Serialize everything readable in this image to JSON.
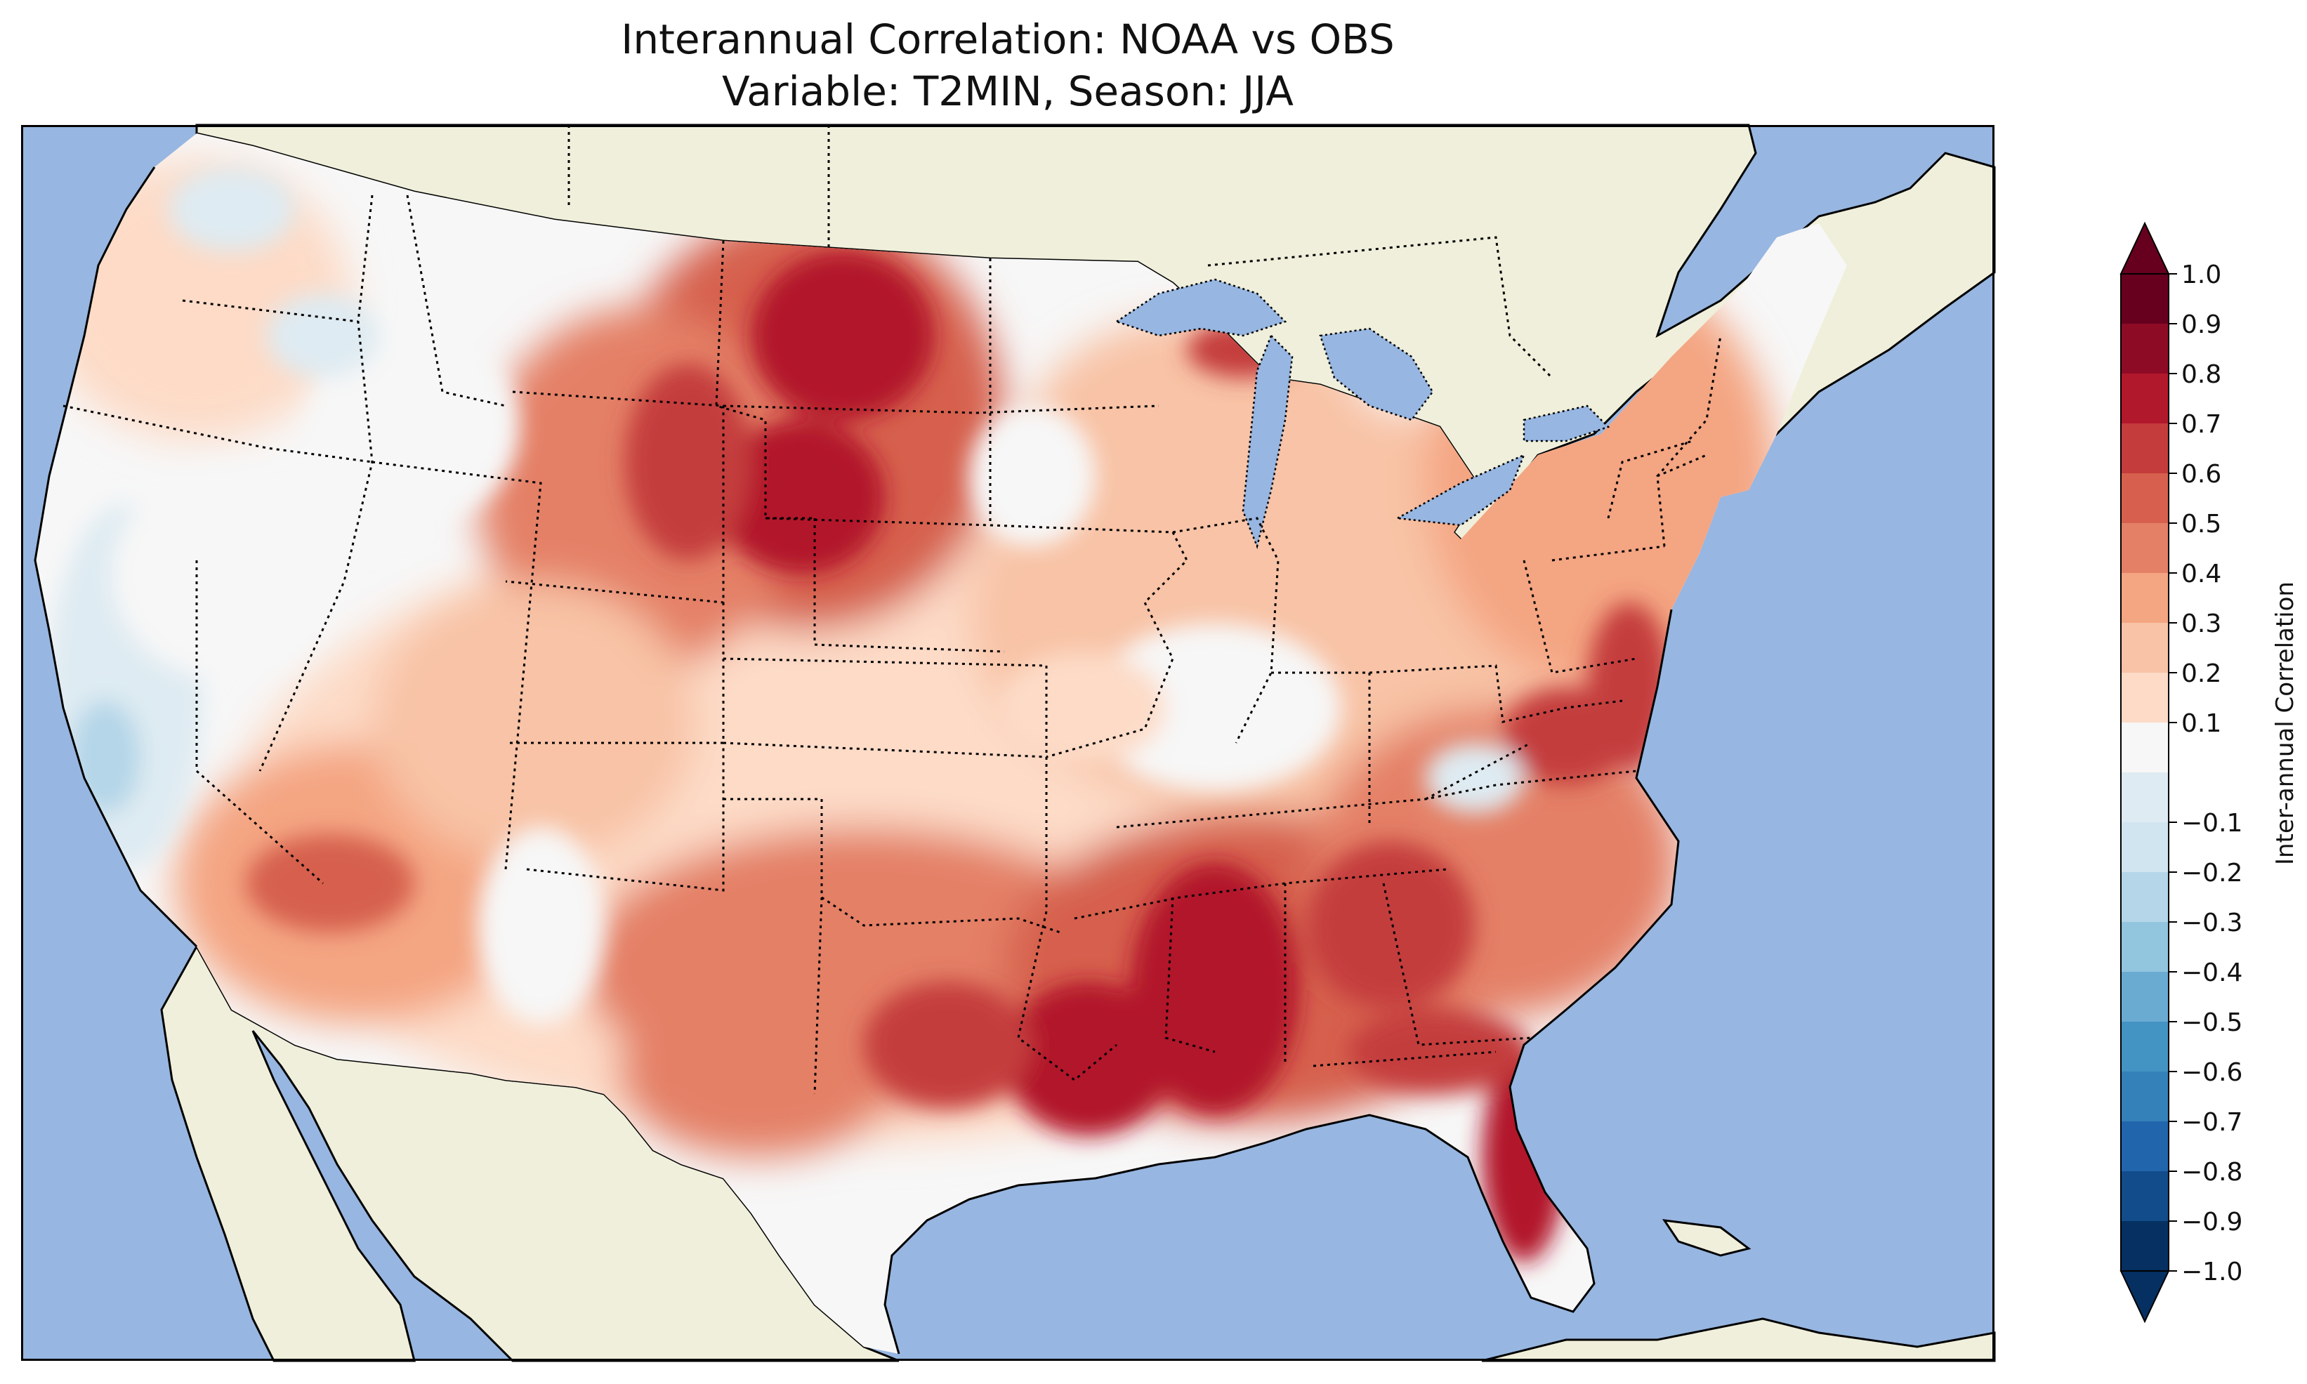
{
  "title": {
    "line1": "Interannual Correlation: NOAA vs OBS",
    "line2": "Variable: T2MIN, Season: JJA"
  },
  "colorbar": {
    "label": "Inter-annual Correlation",
    "ticks": [
      "1.0",
      "0.9",
      "0.8",
      "0.7",
      "0.6",
      "0.5",
      "0.4",
      "0.3",
      "0.2",
      "0.1",
      "−0.1",
      "−0.2",
      "−0.3",
      "−0.4",
      "−0.5",
      "−0.6",
      "−0.7",
      "−0.8",
      "−0.9",
      "−1.0"
    ],
    "colors": [
      "#67001f",
      "#8e0b25",
      "#b2182b",
      "#c43c3c",
      "#d6604d",
      "#e48066",
      "#f4a582",
      "#f8c3a6",
      "#fddbc7",
      "#f7f7f7",
      "#deebf2",
      "#d1e5f0",
      "#b4d6e8",
      "#92c5de",
      "#6aabd2",
      "#4393c3",
      "#3480b9",
      "#2166ac",
      "#124c8b",
      "#053061"
    ],
    "extend": "both"
  },
  "map": {
    "ocean_color": "#97b6e1",
    "land_color": "#efefdb",
    "region": "Contiguous United States",
    "field_summary": "Mostly positive correlation; strongest (0.7-0.9) over northern Great Plains, Gulf Coast states and Florida; near zero to slightly negative over California, Great Basin and Ohio Valley"
  }
}
